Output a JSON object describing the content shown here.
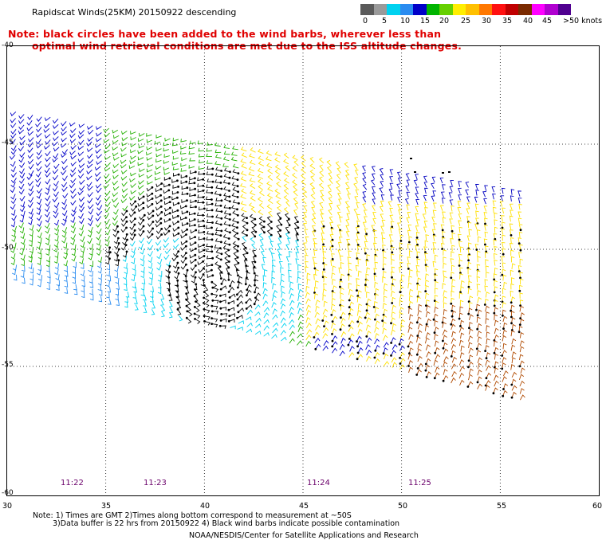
{
  "title": "Rapidscat Winds(25KM) 20150922 descending",
  "note_lines": [
    "Note: black circles have been added to the wind barbs, wherever less than",
    "optimal wind retrieval conditions are met due to the ISS altitude changes."
  ],
  "legend": {
    "labels": [
      "0",
      "5",
      "10",
      "15",
      "20",
      "25",
      "30",
      "35",
      "40",
      "45",
      ">50 knots"
    ],
    "colors": [
      "#5a5a5a",
      "#9a9a9a",
      "#00d2f0",
      "#2a8cf0",
      "#0000c8",
      "#00b400",
      "#66d000",
      "#ffee00",
      "#ffc000",
      "#ff7800",
      "#ff1010",
      "#c00000",
      "#7a2a00",
      "#ff00ff",
      "#b000d0",
      "#500090"
    ]
  },
  "map": {
    "lat_labels": [
      "-40",
      "-45",
      "-50",
      "-55",
      "-60"
    ],
    "lon_labels": [
      "30",
      "35",
      "40",
      "45",
      "50",
      "55",
      "60"
    ],
    "time_labels": [
      "11:22",
      "11:23",
      "11:24",
      "11:25"
    ],
    "extent": {
      "lon": [
        30,
        60
      ],
      "lat": [
        -60,
        -40
      ]
    },
    "swath_corners_lonlat": [
      [
        30,
        -43.3
      ],
      [
        56,
        -47.5
      ],
      [
        56,
        -56.3
      ],
      [
        30,
        -51.0
      ]
    ],
    "cyclone_center_lonlat": [
      40.5,
      -51.3
    ]
  },
  "footer": [
    "Note: 1) Times are GMT 2)Times along bottom correspond to measurement at ~50S",
    "3)Data buffer is 22 hrs from 20150922 4) Black wind barbs indicate possible contamination",
    "NOAA/NESDIS/Center for Satellite Applications and Research"
  ]
}
